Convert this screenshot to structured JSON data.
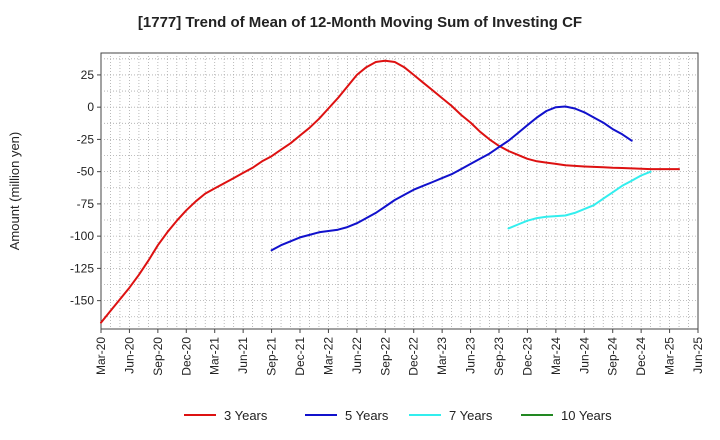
{
  "chart_data": {
    "type": "line",
    "title": "[1777]  Trend of Mean of 12-Month Moving Sum of Investing CF",
    "xlabel": "",
    "ylabel": "Amount (million yen)",
    "ylim": [
      -172,
      42
    ],
    "yticks": [
      25,
      0,
      -25,
      -50,
      -75,
      -100,
      -125,
      -150
    ],
    "ytick_labels": [
      "25",
      "0",
      "-25",
      "-50",
      "-75",
      "-100",
      "-125",
      "-150"
    ],
    "xticks": [
      "Mar-20",
      "Jun-20",
      "Sep-20",
      "Dec-20",
      "Mar-21",
      "Jun-21",
      "Sep-21",
      "Dec-21",
      "Mar-22",
      "Jun-22",
      "Sep-22",
      "Dec-22",
      "Mar-23",
      "Jun-23",
      "Sep-23",
      "Dec-23",
      "Mar-24",
      "Jun-24",
      "Sep-24",
      "Dec-24",
      "Mar-25",
      "Jun-25"
    ],
    "x_start": "Mar-20",
    "x_months": 63,
    "grid": true,
    "legend_position": "bottom",
    "series": [
      {
        "name": "3 Years",
        "color": "#dd1111",
        "start_index": 0,
        "values": [
          -167,
          -158,
          -149,
          -140,
          -130,
          -119,
          -107,
          -97,
          -88,
          -80,
          -73,
          -67,
          -63,
          -59,
          -55,
          -51,
          -47,
          -42,
          -38,
          -33,
          -28,
          -22,
          -16,
          -9,
          -1,
          7,
          16,
          25,
          31,
          35,
          36,
          35,
          31,
          25,
          19,
          13,
          7,
          1,
          -6,
          -12,
          -19,
          -25,
          -30,
          -34,
          -37,
          -40,
          -42,
          -43,
          -44,
          -45,
          -45.5,
          -46,
          -46.3,
          -46.6,
          -47,
          -47.2,
          -47.5,
          -47.7,
          -48,
          -48,
          -48,
          -48
        ]
      },
      {
        "name": "5 Years",
        "color": "#1111cc",
        "start_index": 18,
        "values": [
          -111,
          -107,
          -104,
          -101,
          -99,
          -97,
          -96,
          -95,
          -93,
          -90,
          -86,
          -82,
          -77,
          -72,
          -68,
          -64,
          -61,
          -58,
          -55,
          -52,
          -48,
          -44,
          -40,
          -36,
          -31,
          -26,
          -20,
          -14,
          -8,
          -3,
          0,
          0.5,
          -1,
          -4,
          -8,
          -12,
          -17,
          -21,
          -26
        ]
      },
      {
        "name": "7 Years",
        "color": "#33eeee",
        "start_index": 43,
        "values": [
          -94,
          -91,
          -88,
          -86,
          -85,
          -84.5,
          -84,
          -82,
          -79,
          -76,
          -71,
          -66,
          -61,
          -57,
          -53,
          -50
        ]
      },
      {
        "name": "10 Years",
        "color": "#228822",
        "start_index": 0,
        "values": []
      }
    ]
  }
}
